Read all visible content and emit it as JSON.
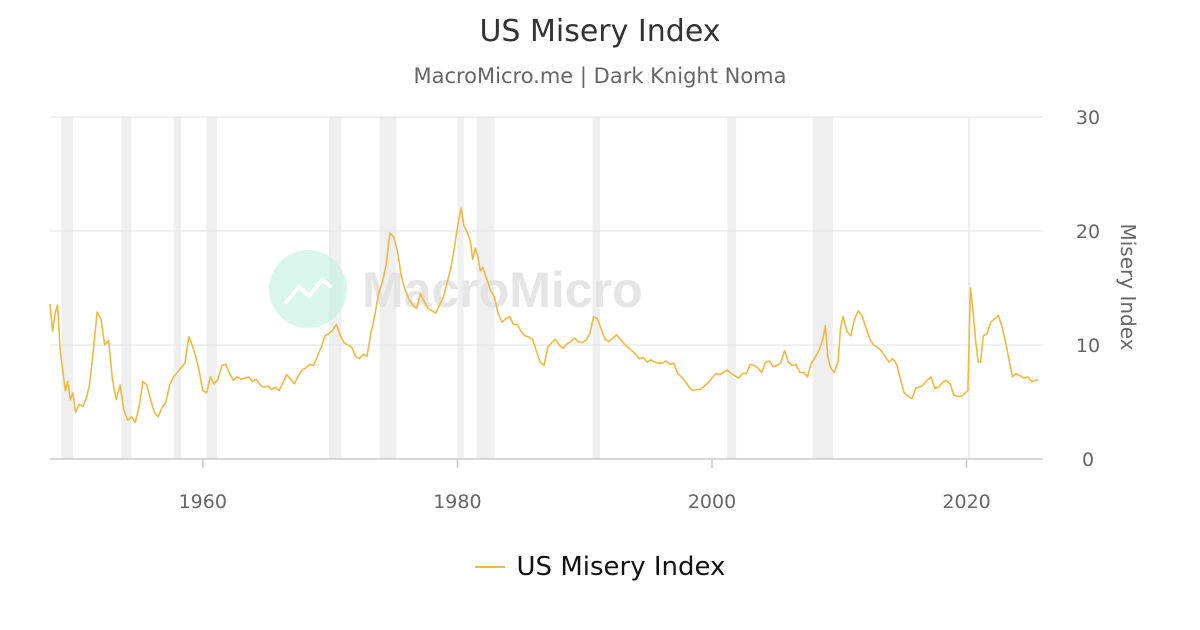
{
  "chart_data": {
    "type": "line",
    "title": "US Misery Index",
    "subtitle": "MacroMicro.me | Dark Knight Noma",
    "ylabel": "Misery Index",
    "xlabel": "",
    "xlim": [
      1948,
      2026
    ],
    "ylim": [
      0,
      30
    ],
    "x_ticks": [
      1960,
      1980,
      2000,
      2020
    ],
    "y_ticks": [
      0,
      10,
      20,
      30
    ],
    "grid": "horizontal",
    "legend_position": "bottom",
    "watermark": "MacroMicro",
    "recessions": [
      [
        1948.9,
        1949.8
      ],
      [
        1953.6,
        1954.4
      ],
      [
        1957.7,
        1958.3
      ],
      [
        1960.3,
        1961.1
      ],
      [
        1969.9,
        1970.9
      ],
      [
        1973.9,
        1975.2
      ],
      [
        1980.0,
        1980.5
      ],
      [
        1981.5,
        1982.9
      ],
      [
        1990.6,
        1991.2
      ],
      [
        2001.2,
        2001.9
      ],
      [
        2007.9,
        2009.5
      ],
      [
        2020.1,
        2020.3
      ]
    ],
    "series": [
      {
        "name": "US Misery Index",
        "color": "#f0b940",
        "points": [
          [
            1948.0,
            13.6
          ],
          [
            1948.2,
            11.2
          ],
          [
            1948.4,
            12.8
          ],
          [
            1948.6,
            13.5
          ],
          [
            1948.8,
            9.5
          ],
          [
            1949.0,
            7.8
          ],
          [
            1949.2,
            6.0
          ],
          [
            1949.4,
            6.8
          ],
          [
            1949.6,
            5.2
          ],
          [
            1949.8,
            5.8
          ],
          [
            1950.0,
            4.1
          ],
          [
            1950.3,
            4.8
          ],
          [
            1950.6,
            4.6
          ],
          [
            1950.9,
            5.5
          ],
          [
            1951.1,
            6.5
          ],
          [
            1951.4,
            9.5
          ],
          [
            1951.7,
            12.9
          ],
          [
            1952.0,
            12.3
          ],
          [
            1952.3,
            10.0
          ],
          [
            1952.6,
            10.4
          ],
          [
            1952.9,
            7.0
          ],
          [
            1953.2,
            5.2
          ],
          [
            1953.5,
            6.5
          ],
          [
            1953.8,
            4.3
          ],
          [
            1954.1,
            3.4
          ],
          [
            1954.4,
            3.7
          ],
          [
            1954.7,
            3.2
          ],
          [
            1955.0,
            4.6
          ],
          [
            1955.3,
            6.8
          ],
          [
            1955.6,
            6.5
          ],
          [
            1955.9,
            5.2
          ],
          [
            1956.2,
            4.1
          ],
          [
            1956.5,
            3.7
          ],
          [
            1956.8,
            4.5
          ],
          [
            1957.1,
            5.0
          ],
          [
            1957.4,
            6.5
          ],
          [
            1957.7,
            7.2
          ],
          [
            1958.0,
            7.6
          ],
          [
            1958.3,
            8.0
          ],
          [
            1958.6,
            8.4
          ],
          [
            1958.9,
            10.7
          ],
          [
            1959.1,
            10.2
          ],
          [
            1959.4,
            9.2
          ],
          [
            1959.7,
            7.8
          ],
          [
            1960.0,
            6.0
          ],
          [
            1960.3,
            5.8
          ],
          [
            1960.6,
            7.2
          ],
          [
            1960.9,
            6.6
          ],
          [
            1961.2,
            7.0
          ],
          [
            1961.5,
            8.2
          ],
          [
            1961.8,
            8.3
          ],
          [
            1962.1,
            7.5
          ],
          [
            1962.4,
            6.9
          ],
          [
            1962.7,
            7.2
          ],
          [
            1963.0,
            7.0
          ],
          [
            1963.3,
            7.1
          ],
          [
            1963.6,
            7.2
          ],
          [
            1963.9,
            6.8
          ],
          [
            1964.2,
            7.0
          ],
          [
            1964.5,
            6.5
          ],
          [
            1964.8,
            6.3
          ],
          [
            1965.1,
            6.4
          ],
          [
            1965.4,
            6.1
          ],
          [
            1965.7,
            6.3
          ],
          [
            1966.0,
            6.0
          ],
          [
            1966.3,
            6.7
          ],
          [
            1966.6,
            7.4
          ],
          [
            1966.9,
            7.0
          ],
          [
            1967.2,
            6.6
          ],
          [
            1967.5,
            7.3
          ],
          [
            1967.8,
            7.8
          ],
          [
            1968.1,
            8.0
          ],
          [
            1968.4,
            8.3
          ],
          [
            1968.7,
            8.2
          ],
          [
            1969.0,
            9.0
          ],
          [
            1969.3,
            9.8
          ],
          [
            1969.6,
            10.8
          ],
          [
            1969.9,
            11.0
          ],
          [
            1970.2,
            11.3
          ],
          [
            1970.5,
            11.8
          ],
          [
            1970.8,
            10.8
          ],
          [
            1971.1,
            10.2
          ],
          [
            1971.4,
            10.0
          ],
          [
            1971.7,
            9.8
          ],
          [
            1972.0,
            9.0
          ],
          [
            1972.3,
            8.8
          ],
          [
            1972.6,
            9.2
          ],
          [
            1972.9,
            9.0
          ],
          [
            1973.2,
            11.0
          ],
          [
            1973.5,
            12.5
          ],
          [
            1973.8,
            14.5
          ],
          [
            1974.1,
            15.5
          ],
          [
            1974.4,
            17.0
          ],
          [
            1974.7,
            19.8
          ],
          [
            1975.0,
            19.5
          ],
          [
            1975.3,
            18.2
          ],
          [
            1975.6,
            16.0
          ],
          [
            1975.9,
            14.8
          ],
          [
            1976.2,
            14.0
          ],
          [
            1976.5,
            13.5
          ],
          [
            1976.8,
            13.2
          ],
          [
            1977.1,
            14.5
          ],
          [
            1977.4,
            13.8
          ],
          [
            1977.7,
            13.2
          ],
          [
            1978.0,
            13.0
          ],
          [
            1978.3,
            12.8
          ],
          [
            1978.6,
            13.5
          ],
          [
            1978.9,
            14.2
          ],
          [
            1979.2,
            15.5
          ],
          [
            1979.5,
            16.8
          ],
          [
            1979.8,
            18.8
          ],
          [
            1980.1,
            21.0
          ],
          [
            1980.3,
            22.0
          ],
          [
            1980.5,
            20.5
          ],
          [
            1980.8,
            19.8
          ],
          [
            1981.0,
            19.2
          ],
          [
            1981.2,
            17.5
          ],
          [
            1981.4,
            18.5
          ],
          [
            1981.6,
            17.8
          ],
          [
            1981.8,
            16.5
          ],
          [
            1982.0,
            16.8
          ],
          [
            1982.3,
            15.8
          ],
          [
            1982.6,
            14.8
          ],
          [
            1982.9,
            14.2
          ],
          [
            1983.2,
            12.8
          ],
          [
            1983.5,
            12.0
          ],
          [
            1983.8,
            12.3
          ],
          [
            1984.1,
            12.5
          ],
          [
            1984.4,
            11.8
          ],
          [
            1984.7,
            11.8
          ],
          [
            1985.0,
            11.2
          ],
          [
            1985.3,
            10.8
          ],
          [
            1985.6,
            10.7
          ],
          [
            1985.9,
            10.5
          ],
          [
            1986.2,
            9.5
          ],
          [
            1986.5,
            8.5
          ],
          [
            1986.8,
            8.2
          ],
          [
            1987.1,
            9.8
          ],
          [
            1987.4,
            10.2
          ],
          [
            1987.7,
            10.5
          ],
          [
            1988.0,
            10.0
          ],
          [
            1988.3,
            9.7
          ],
          [
            1988.6,
            10.1
          ],
          [
            1988.9,
            10.3
          ],
          [
            1989.2,
            10.6
          ],
          [
            1989.5,
            10.3
          ],
          [
            1989.8,
            10.2
          ],
          [
            1990.1,
            10.4
          ],
          [
            1990.4,
            11.0
          ],
          [
            1990.7,
            12.5
          ],
          [
            1991.0,
            12.3
          ],
          [
            1991.3,
            11.4
          ],
          [
            1991.6,
            10.5
          ],
          [
            1991.9,
            10.3
          ],
          [
            1992.2,
            10.6
          ],
          [
            1992.5,
            10.9
          ],
          [
            1992.8,
            10.5
          ],
          [
            1993.1,
            10.1
          ],
          [
            1993.4,
            9.8
          ],
          [
            1993.7,
            9.5
          ],
          [
            1994.0,
            9.2
          ],
          [
            1994.3,
            8.8
          ],
          [
            1994.6,
            8.9
          ],
          [
            1994.9,
            8.5
          ],
          [
            1995.2,
            8.7
          ],
          [
            1995.5,
            8.5
          ],
          [
            1995.8,
            8.4
          ],
          [
            1996.1,
            8.4
          ],
          [
            1996.4,
            8.6
          ],
          [
            1996.7,
            8.3
          ],
          [
            1997.0,
            8.4
          ],
          [
            1997.3,
            7.5
          ],
          [
            1997.6,
            7.2
          ],
          [
            1997.9,
            6.8
          ],
          [
            1998.2,
            6.3
          ],
          [
            1998.5,
            6.0
          ],
          [
            1998.8,
            6.1
          ],
          [
            1999.1,
            6.1
          ],
          [
            1999.4,
            6.4
          ],
          [
            1999.7,
            6.7
          ],
          [
            2000.0,
            7.1
          ],
          [
            2000.3,
            7.5
          ],
          [
            2000.6,
            7.4
          ],
          [
            2000.9,
            7.6
          ],
          [
            2001.2,
            7.8
          ],
          [
            2001.5,
            7.5
          ],
          [
            2001.8,
            7.3
          ],
          [
            2002.1,
            7.1
          ],
          [
            2002.4,
            7.5
          ],
          [
            2002.7,
            7.5
          ],
          [
            2003.0,
            8.3
          ],
          [
            2003.3,
            8.2
          ],
          [
            2003.6,
            8.0
          ],
          [
            2003.9,
            7.6
          ],
          [
            2004.2,
            8.5
          ],
          [
            2004.5,
            8.6
          ],
          [
            2004.8,
            8.1
          ],
          [
            2005.1,
            8.2
          ],
          [
            2005.4,
            8.4
          ],
          [
            2005.7,
            9.5
          ],
          [
            2006.0,
            8.5
          ],
          [
            2006.3,
            8.2
          ],
          [
            2006.6,
            8.3
          ],
          [
            2006.9,
            7.6
          ],
          [
            2007.2,
            7.6
          ],
          [
            2007.5,
            7.2
          ],
          [
            2007.8,
            8.4
          ],
          [
            2008.1,
            8.9
          ],
          [
            2008.4,
            9.5
          ],
          [
            2008.7,
            10.5
          ],
          [
            2008.9,
            11.7
          ],
          [
            2009.1,
            9.0
          ],
          [
            2009.3,
            8.0
          ],
          [
            2009.6,
            7.6
          ],
          [
            2009.9,
            8.5
          ],
          [
            2010.1,
            11.5
          ],
          [
            2010.3,
            12.5
          ],
          [
            2010.6,
            11.2
          ],
          [
            2010.9,
            10.8
          ],
          [
            2011.2,
            12.3
          ],
          [
            2011.5,
            13.0
          ],
          [
            2011.8,
            12.5
          ],
          [
            2012.1,
            11.5
          ],
          [
            2012.4,
            10.5
          ],
          [
            2012.7,
            10.0
          ],
          [
            2013.0,
            9.8
          ],
          [
            2013.3,
            9.5
          ],
          [
            2013.6,
            9.0
          ],
          [
            2013.9,
            8.5
          ],
          [
            2014.2,
            8.8
          ],
          [
            2014.5,
            8.3
          ],
          [
            2014.8,
            7.0
          ],
          [
            2015.1,
            5.8
          ],
          [
            2015.4,
            5.5
          ],
          [
            2015.7,
            5.3
          ],
          [
            2016.0,
            6.2
          ],
          [
            2016.3,
            6.3
          ],
          [
            2016.6,
            6.5
          ],
          [
            2016.9,
            6.9
          ],
          [
            2017.2,
            7.2
          ],
          [
            2017.5,
            6.2
          ],
          [
            2017.8,
            6.3
          ],
          [
            2018.1,
            6.7
          ],
          [
            2018.4,
            6.9
          ],
          [
            2018.7,
            6.6
          ],
          [
            2019.0,
            5.6
          ],
          [
            2019.3,
            5.5
          ],
          [
            2019.6,
            5.5
          ],
          [
            2019.9,
            5.8
          ],
          [
            2020.1,
            6.0
          ],
          [
            2020.3,
            15.0
          ],
          [
            2020.5,
            13.0
          ],
          [
            2020.7,
            10.5
          ],
          [
            2020.9,
            8.5
          ],
          [
            2021.1,
            8.5
          ],
          [
            2021.3,
            10.8
          ],
          [
            2021.6,
            11.0
          ],
          [
            2021.9,
            12.0
          ],
          [
            2022.2,
            12.3
          ],
          [
            2022.5,
            12.6
          ],
          [
            2022.8,
            11.5
          ],
          [
            2023.1,
            10.0
          ],
          [
            2023.4,
            8.3
          ],
          [
            2023.6,
            7.2
          ],
          [
            2023.9,
            7.5
          ],
          [
            2024.2,
            7.3
          ],
          [
            2024.5,
            7.1
          ],
          [
            2024.8,
            7.2
          ],
          [
            2025.1,
            6.8
          ],
          [
            2025.4,
            6.9
          ],
          [
            2025.6,
            7.0
          ]
        ]
      }
    ]
  }
}
